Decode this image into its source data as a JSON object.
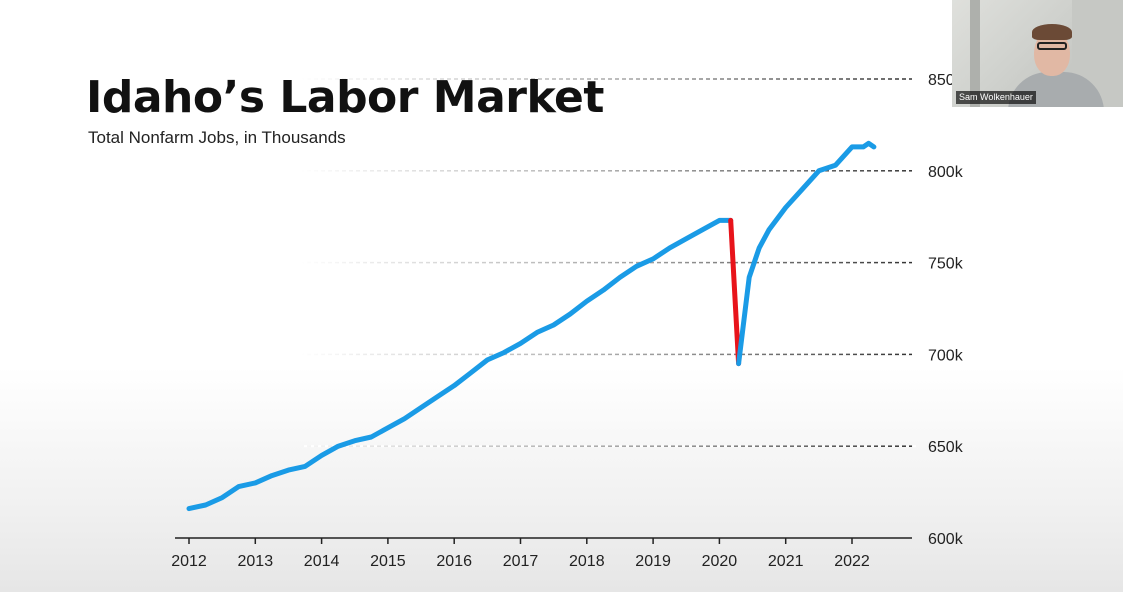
{
  "slide": {
    "title": "Idaho’s Labor Market",
    "subtitle": "Total Nonfarm Jobs, in Thousands"
  },
  "webcam": {
    "participant_name": "Sam Wolkenhauer"
  },
  "chart_data": {
    "type": "line",
    "title": "Idaho’s Labor Market",
    "subtitle": "Total Nonfarm Jobs, in Thousands",
    "xlabel": "",
    "ylabel": "",
    "xlim": [
      2012,
      2022.4
    ],
    "ylim": [
      600,
      850
    ],
    "x_ticks": [
      2012,
      2013,
      2014,
      2015,
      2016,
      2017,
      2018,
      2019,
      2020,
      2021,
      2022
    ],
    "x_tick_labels": [
      "2012",
      "2013",
      "2014",
      "2015",
      "2016",
      "2017",
      "2018",
      "2019",
      "2020",
      "2021",
      "2022"
    ],
    "y_ticks": [
      600,
      650,
      700,
      750,
      800,
      850
    ],
    "y_tick_labels": [
      "600k",
      "650k",
      "700k",
      "750k",
      "800k",
      "850"
    ],
    "grid": "horizontal dashed",
    "y_axis_side": "right",
    "series": [
      {
        "color": "#1a9be6",
        "x": [
          2012.0,
          2012.25,
          2012.5,
          2012.75,
          2013.0,
          2013.25,
          2013.5,
          2013.75,
          2014.0,
          2014.25,
          2014.5,
          2014.75,
          2015.0,
          2015.25,
          2015.5,
          2015.75,
          2016.0,
          2016.25,
          2016.5,
          2016.75,
          2017.0,
          2017.25,
          2017.5,
          2017.75,
          2018.0,
          2018.25,
          2018.5,
          2018.75,
          2019.0,
          2019.25,
          2019.5,
          2019.75,
          2020.0,
          2020.17
        ],
        "y": [
          616,
          618,
          622,
          628,
          630,
          634,
          637,
          639,
          645,
          650,
          653,
          655,
          660,
          665,
          671,
          677,
          683,
          690,
          697,
          701,
          706,
          712,
          716,
          722,
          729,
          735,
          742,
          748,
          752,
          758,
          763,
          768,
          773,
          773
        ]
      },
      {
        "color": "#e8141b",
        "x": [
          2020.17,
          2020.29
        ],
        "y": [
          773,
          695
        ]
      },
      {
        "color": "#1a9be6",
        "x": [
          2020.29,
          2020.45,
          2020.6,
          2020.75,
          2021.0,
          2021.25,
          2021.5,
          2021.75,
          2022.0,
          2022.17,
          2022.25,
          2022.33
        ],
        "y": [
          695,
          742,
          758,
          768,
          780,
          790,
          800,
          803,
          813,
          813,
          815,
          813
        ]
      }
    ]
  }
}
